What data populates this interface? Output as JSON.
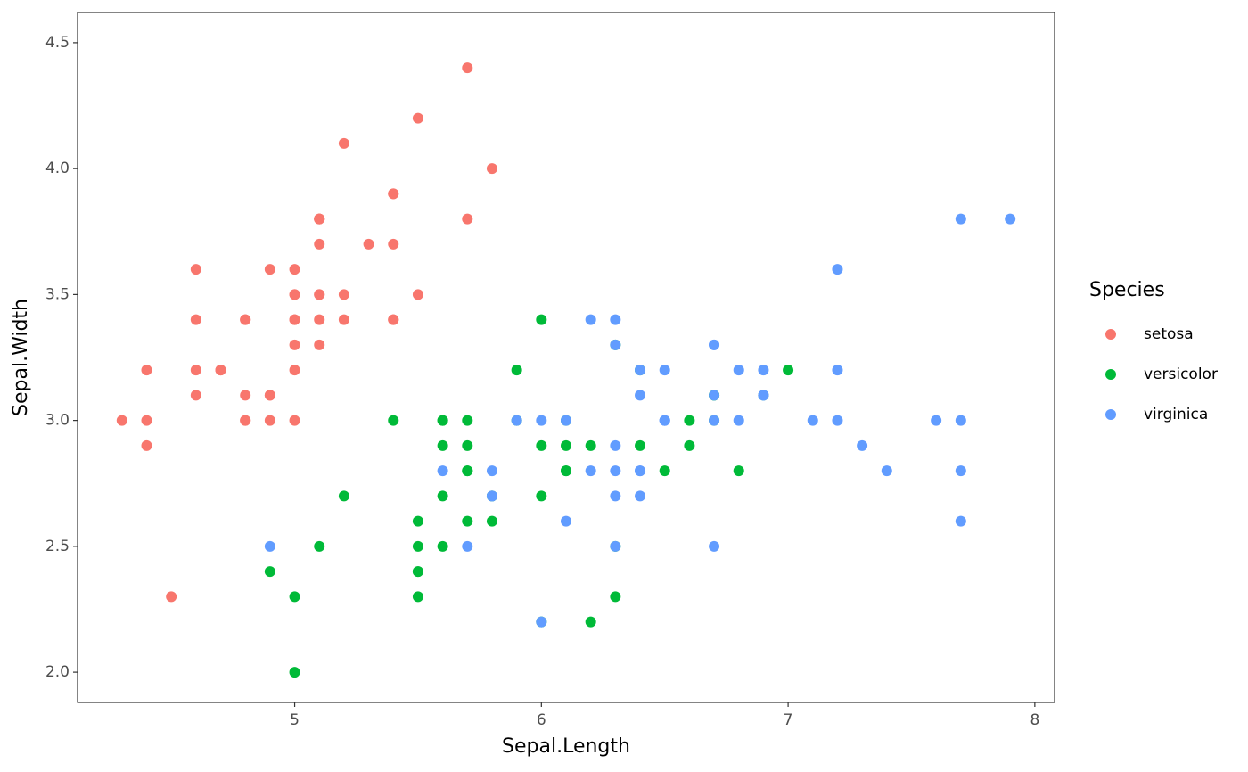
{
  "chart_data": {
    "type": "scatter",
    "x_label": "Sepal.Length",
    "y_label": "Sepal.Width",
    "legend_title": "Species",
    "xlim": [
      4.12,
      8.08
    ],
    "ylim": [
      1.88,
      4.62
    ],
    "xticks": [
      5,
      6,
      7,
      8
    ],
    "yticks": [
      {
        "value": 2,
        "label": "2.0"
      },
      2.5,
      {
        "value": 3,
        "label": "3.0"
      },
      3.5,
      {
        "value": 4,
        "label": "4.0"
      },
      4.5
    ],
    "grid": false,
    "legend": "right",
    "series": [
      {
        "name": "setosa",
        "color": "#f8766d",
        "x": [
          5.1,
          4.9,
          4.7,
          4.6,
          5.0,
          5.4,
          4.6,
          5.0,
          4.4,
          4.9,
          5.4,
          4.8,
          4.8,
          4.3,
          5.8,
          5.7,
          5.4,
          5.1,
          5.7,
          5.1,
          5.4,
          5.1,
          4.6,
          5.1,
          4.8,
          5.0,
          5.0,
          5.2,
          5.2,
          4.7,
          4.8,
          5.4,
          5.2,
          5.5,
          4.9,
          5.0,
          5.5,
          4.9,
          4.4,
          5.1,
          5.0,
          4.5,
          4.4,
          5.0,
          5.1,
          4.8,
          5.1,
          4.6,
          5.3,
          5.0
        ],
        "values": [
          3.5,
          3.0,
          3.2,
          3.1,
          3.6,
          3.9,
          3.4,
          3.4,
          2.9,
          3.1,
          3.7,
          3.4,
          3.0,
          3.0,
          4.0,
          4.4,
          3.9,
          3.5,
          3.8,
          3.8,
          3.4,
          3.7,
          3.6,
          3.3,
          3.4,
          3.0,
          3.4,
          3.5,
          3.4,
          3.2,
          3.1,
          3.4,
          4.1,
          4.2,
          3.1,
          3.2,
          3.5,
          3.6,
          3.0,
          3.4,
          3.5,
          2.3,
          3.2,
          3.5,
          3.8,
          3.0,
          3.8,
          3.2,
          3.7,
          3.3
        ]
      },
      {
        "name": "versicolor",
        "color": "#00ba38",
        "x": [
          7.0,
          6.4,
          6.9,
          5.5,
          6.5,
          5.7,
          6.3,
          4.9,
          6.6,
          5.2,
          5.0,
          5.9,
          6.0,
          6.1,
          5.6,
          6.7,
          5.6,
          5.8,
          6.2,
          5.6,
          5.9,
          6.1,
          6.3,
          6.1,
          6.4,
          6.6,
          6.8,
          6.7,
          6.0,
          5.7,
          5.5,
          5.5,
          5.8,
          6.0,
          5.4,
          6.0,
          6.7,
          6.3,
          5.6,
          5.5,
          5.5,
          6.1,
          5.8,
          5.0,
          5.6,
          5.7,
          5.7,
          6.2,
          5.1,
          5.7
        ],
        "values": [
          3.2,
          3.2,
          3.1,
          2.3,
          2.8,
          2.8,
          3.3,
          2.4,
          2.9,
          2.7,
          2.0,
          3.0,
          2.2,
          2.9,
          2.9,
          3.1,
          3.0,
          2.7,
          2.2,
          2.5,
          3.2,
          2.8,
          2.5,
          2.8,
          2.9,
          3.0,
          2.8,
          3.0,
          2.9,
          2.6,
          2.4,
          2.4,
          2.7,
          2.7,
          3.0,
          3.4,
          3.1,
          2.3,
          3.0,
          2.5,
          2.6,
          3.0,
          2.6,
          2.3,
          2.7,
          3.0,
          2.9,
          2.9,
          2.5,
          2.8
        ]
      },
      {
        "name": "virginica",
        "color": "#619cff",
        "x": [
          6.3,
          5.8,
          7.1,
          6.3,
          6.5,
          7.6,
          4.9,
          7.3,
          6.7,
          7.2,
          6.5,
          6.4,
          6.8,
          5.7,
          5.8,
          6.4,
          6.5,
          7.7,
          7.7,
          6.0,
          6.9,
          5.6,
          7.7,
          6.3,
          6.7,
          7.2,
          6.2,
          6.1,
          6.4,
          7.2,
          7.4,
          7.9,
          6.4,
          6.3,
          6.1,
          7.7,
          6.3,
          6.4,
          6.0,
          6.9,
          6.7,
          6.9,
          5.8,
          6.8,
          6.7,
          6.7,
          6.3,
          6.5,
          6.2,
          5.9
        ],
        "values": [
          3.3,
          2.7,
          3.0,
          2.9,
          3.0,
          3.0,
          2.5,
          2.9,
          2.5,
          3.6,
          3.2,
          2.7,
          3.0,
          2.5,
          2.8,
          3.2,
          3.0,
          3.8,
          2.6,
          2.2,
          3.2,
          2.8,
          2.8,
          2.7,
          3.3,
          3.2,
          2.8,
          3.0,
          2.8,
          3.0,
          2.8,
          3.8,
          2.8,
          2.8,
          2.6,
          3.0,
          3.4,
          3.1,
          3.0,
          3.1,
          3.1,
          3.1,
          2.7,
          3.2,
          3.3,
          3.0,
          2.5,
          3.0,
          3.4,
          3.0
        ]
      }
    ]
  }
}
